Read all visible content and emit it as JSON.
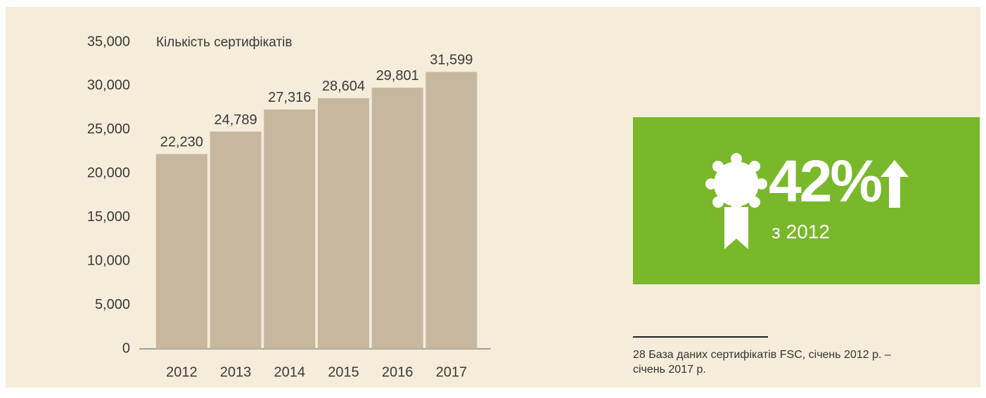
{
  "chart_data": {
    "type": "bar",
    "axis_title": "Кількість сертифікатів",
    "categories": [
      "2012",
      "2013",
      "2014",
      "2015",
      "2016",
      "2017"
    ],
    "values": [
      22230,
      24789,
      27316,
      28604,
      29801,
      31599
    ],
    "value_labels": [
      "22,230",
      "24,789",
      "27,316",
      "28,604",
      "29,801",
      "31,599"
    ],
    "color": "#c8b79f",
    "ylim": [
      0,
      35000
    ],
    "yticks": [
      0,
      {
        "value": 5000,
        "label": "5,000"
      },
      {
        "value": 10000,
        "label": "10,000"
      },
      {
        "value": 15000,
        "label": "15,000"
      },
      {
        "value": 20000,
        "label": "20,000"
      },
      {
        "value": 25000,
        "label": "25,000"
      },
      {
        "value": 30000,
        "label": "30,000"
      },
      {
        "value": 35000,
        "label": "35,000"
      }
    ],
    "grid": false
  },
  "highlight": {
    "value": "42%",
    "subtitle": "з 2012"
  },
  "footnote": {
    "lines": [
      "28 База даних сертифікатів FSC, січень 2012 р. –",
      "січень 2017 р."
    ]
  }
}
